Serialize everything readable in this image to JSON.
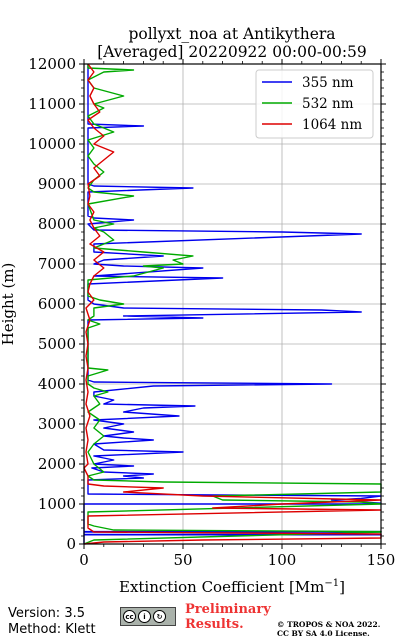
{
  "chart_data": {
    "type": "line",
    "title_line1": "pollyxt_noa at Antikythera",
    "title_line2": "[Averaged] 20220922 00:00-00:59",
    "xlabel": "Extinction Coefficient [Mm",
    "xlabel_sup": "−1",
    "xlabel_end": "]",
    "ylabel": "Height (m)",
    "xlim": [
      0,
      150
    ],
    "ylim": [
      0,
      12000
    ],
    "x_ticks": [
      0,
      50,
      100,
      150
    ],
    "y_ticks": [
      0,
      1000,
      2000,
      3000,
      4000,
      5000,
      6000,
      7000,
      8000,
      9000,
      10000,
      11000,
      12000
    ],
    "grid": true,
    "legend_position": "top-right",
    "series": [
      {
        "name": "355 nm",
        "color": "#0000ee",
        "points": [
          [
            0,
            0
          ],
          [
            0,
            230
          ],
          [
            150,
            230
          ],
          [
            150,
            240
          ],
          [
            0,
            240
          ],
          [
            0,
            300
          ],
          [
            150,
            300
          ],
          [
            150,
            310
          ],
          [
            0,
            310
          ],
          [
            0,
            1000
          ],
          [
            140,
            1000
          ],
          [
            150,
            1020
          ],
          [
            125,
            1100
          ],
          [
            140,
            1140
          ],
          [
            150,
            1200
          ],
          [
            2,
            1250
          ],
          [
            2,
            1600
          ],
          [
            30,
            1650
          ],
          [
            20,
            1700
          ],
          [
            35,
            1750
          ],
          [
            10,
            1800
          ],
          [
            4,
            1900
          ],
          [
            25,
            1950
          ],
          [
            5,
            2000
          ],
          [
            15,
            2100
          ],
          [
            5,
            2200
          ],
          [
            50,
            2300
          ],
          [
            10,
            2350
          ],
          [
            5,
            2500
          ],
          [
            35,
            2600
          ],
          [
            20,
            2650
          ],
          [
            10,
            2700
          ],
          [
            25,
            2800
          ],
          [
            10,
            2900
          ],
          [
            20,
            3000
          ],
          [
            5,
            3100
          ],
          [
            48,
            3200
          ],
          [
            20,
            3300
          ],
          [
            30,
            3400
          ],
          [
            56,
            3450
          ],
          [
            10,
            3500
          ],
          [
            15,
            3600
          ],
          [
            5,
            3700
          ],
          [
            5,
            3800
          ],
          [
            35,
            3950
          ],
          [
            125,
            4000
          ],
          [
            5,
            4050
          ],
          [
            2,
            4100
          ],
          [
            2,
            5600
          ],
          [
            60,
            5650
          ],
          [
            20,
            5700
          ],
          [
            140,
            5800
          ],
          [
            120,
            5850
          ],
          [
            20,
            5900
          ],
          [
            5,
            6000
          ],
          [
            2,
            6100
          ],
          [
            2,
            6500
          ],
          [
            70,
            6650
          ],
          [
            5,
            6700
          ],
          [
            60,
            6900
          ],
          [
            20,
            6950
          ],
          [
            5,
            7000
          ],
          [
            10,
            7100
          ],
          [
            40,
            7200
          ],
          [
            5,
            7300
          ],
          [
            5,
            7500
          ],
          [
            140,
            7750
          ],
          [
            100,
            7800
          ],
          [
            5,
            7850
          ],
          [
            2,
            8000
          ],
          [
            25,
            8100
          ],
          [
            5,
            8150
          ],
          [
            2,
            8200
          ],
          [
            2,
            8800
          ],
          [
            55,
            8900
          ],
          [
            5,
            8950
          ],
          [
            2,
            9000
          ],
          [
            2,
            10400
          ],
          [
            30,
            10450
          ],
          [
            2,
            10500
          ],
          [
            2,
            12000
          ]
        ]
      },
      {
        "name": "532 nm",
        "color": "#00aa00",
        "points": [
          [
            0,
            0
          ],
          [
            5,
            100
          ],
          [
            150,
            300
          ],
          [
            150,
            310
          ],
          [
            15,
            350
          ],
          [
            5,
            450
          ],
          [
            2,
            500
          ],
          [
            2,
            800
          ],
          [
            150,
            1000
          ],
          [
            140,
            1050
          ],
          [
            70,
            1100
          ],
          [
            65,
            1200
          ],
          [
            150,
            1300
          ],
          [
            150,
            1400
          ],
          [
            150,
            1500
          ],
          [
            40,
            1550
          ],
          [
            5,
            1600
          ],
          [
            2,
            1700
          ],
          [
            10,
            1800
          ],
          [
            5,
            2000
          ],
          [
            2,
            2300
          ],
          [
            5,
            2500
          ],
          [
            10,
            2700
          ],
          [
            5,
            2900
          ],
          [
            8,
            3100
          ],
          [
            2,
            3300
          ],
          [
            8,
            3500
          ],
          [
            5,
            3700
          ],
          [
            12,
            3800
          ],
          [
            5,
            3900
          ],
          [
            2,
            4000
          ],
          [
            2,
            4200
          ],
          [
            12,
            4350
          ],
          [
            2,
            4400
          ],
          [
            2,
            5400
          ],
          [
            8,
            5500
          ],
          [
            2,
            5600
          ],
          [
            5,
            5700
          ],
          [
            5,
            5900
          ],
          [
            20,
            6000
          ],
          [
            8,
            6100
          ],
          [
            2,
            6200
          ],
          [
            2,
            6600
          ],
          [
            25,
            6700
          ],
          [
            40,
            6900
          ],
          [
            30,
            6950
          ],
          [
            50,
            7000
          ],
          [
            45,
            7100
          ],
          [
            55,
            7200
          ],
          [
            30,
            7300
          ],
          [
            5,
            7400
          ],
          [
            15,
            7600
          ],
          [
            10,
            7800
          ],
          [
            5,
            7900
          ],
          [
            15,
            8000
          ],
          [
            5,
            8100
          ],
          [
            2,
            8500
          ],
          [
            25,
            8700
          ],
          [
            5,
            8800
          ],
          [
            2,
            8900
          ],
          [
            5,
            9100
          ],
          [
            10,
            9300
          ],
          [
            5,
            9500
          ],
          [
            2,
            9700
          ],
          [
            5,
            9900
          ],
          [
            2,
            10100
          ],
          [
            15,
            10300
          ],
          [
            5,
            10500
          ],
          [
            2,
            10700
          ],
          [
            10,
            10900
          ],
          [
            5,
            11000
          ],
          [
            20,
            11200
          ],
          [
            5,
            11400
          ],
          [
            2,
            11600
          ],
          [
            10,
            11800
          ],
          [
            25,
            11850
          ],
          [
            2,
            11900
          ],
          [
            2,
            12000
          ]
        ]
      },
      {
        "name": "1064 nm",
        "color": "#dd0000",
        "points": [
          [
            0,
            0
          ],
          [
            10,
            50
          ],
          [
            60,
            100
          ],
          [
            150,
            150
          ],
          [
            150,
            250
          ],
          [
            5,
            300
          ],
          [
            2,
            400
          ],
          [
            2,
            700
          ],
          [
            150,
            850
          ],
          [
            65,
            900
          ],
          [
            100,
            1000
          ],
          [
            150,
            1100
          ],
          [
            60,
            1200
          ],
          [
            20,
            1300
          ],
          [
            40,
            1400
          ],
          [
            10,
            1450
          ],
          [
            2,
            1500
          ],
          [
            2,
            1700
          ],
          [
            0,
            1900
          ],
          [
            2,
            2000
          ],
          [
            1,
            2300
          ],
          [
            2,
            2600
          ],
          [
            1,
            2900
          ],
          [
            3,
            3200
          ],
          [
            1,
            3500
          ],
          [
            2,
            3800
          ],
          [
            1,
            4100
          ],
          [
            2,
            4400
          ],
          [
            1,
            4700
          ],
          [
            2,
            5000
          ],
          [
            1,
            5300
          ],
          [
            3,
            5600
          ],
          [
            1,
            5900
          ],
          [
            5,
            6100
          ],
          [
            2,
            6300
          ],
          [
            3,
            6500
          ],
          [
            5,
            6700
          ],
          [
            10,
            6900
          ],
          [
            5,
            7100
          ],
          [
            10,
            7300
          ],
          [
            3,
            7500
          ],
          [
            8,
            7700
          ],
          [
            5,
            7900
          ],
          [
            3,
            8100
          ],
          [
            5,
            8300
          ],
          [
            2,
            8500
          ],
          [
            3,
            8700
          ],
          [
            2,
            9000
          ],
          [
            8,
            9200
          ],
          [
            5,
            9400
          ],
          [
            10,
            9600
          ],
          [
            15,
            9800
          ],
          [
            5,
            10000
          ],
          [
            10,
            10200
          ],
          [
            5,
            10400
          ],
          [
            2,
            10600
          ],
          [
            8,
            10800
          ],
          [
            5,
            11000
          ],
          [
            3,
            11200
          ],
          [
            5,
            11400
          ],
          [
            2,
            11600
          ],
          [
            5,
            11800
          ],
          [
            2,
            12000
          ]
        ]
      }
    ]
  },
  "footer": {
    "version": "Version: 3.5",
    "method": "Method: Klett",
    "preliminary_line1": "Preliminary",
    "preliminary_line2": "Results.",
    "copyright_line1": "© TROPOS & NOA 2022.",
    "copyright_line2": "CC BY SA 4.0 License."
  }
}
